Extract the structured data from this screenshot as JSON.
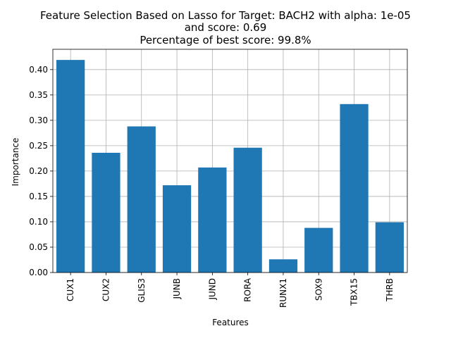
{
  "chart_data": {
    "type": "bar",
    "title_lines": [
      "Feature Selection Based on Lasso for Target: BACH2 with alpha: 1e-05",
      "and score: 0.69",
      "Percentage of best score: 99.8%"
    ],
    "xlabel": "Features",
    "ylabel": "Importance",
    "categories": [
      "CUX1",
      "CUX2",
      "GLIS3",
      "JUNB",
      "JUND",
      "RORA",
      "RUNX1",
      "SOX9",
      "TBX15",
      "THRB"
    ],
    "values": [
      0.419,
      0.236,
      0.288,
      0.172,
      0.207,
      0.246,
      0.026,
      0.088,
      0.332,
      0.099
    ],
    "ylim": [
      0,
      0.44
    ],
    "yticks": [
      "0.00",
      "0.05",
      "0.10",
      "0.15",
      "0.20",
      "0.25",
      "0.30",
      "0.35",
      "0.40"
    ],
    "ytick_values": [
      0,
      0.05,
      0.1,
      0.15,
      0.2,
      0.25,
      0.3,
      0.35,
      0.4
    ],
    "grid": true,
    "bar_color": "#1f77b4",
    "grid_color": "#b0b0b0"
  }
}
